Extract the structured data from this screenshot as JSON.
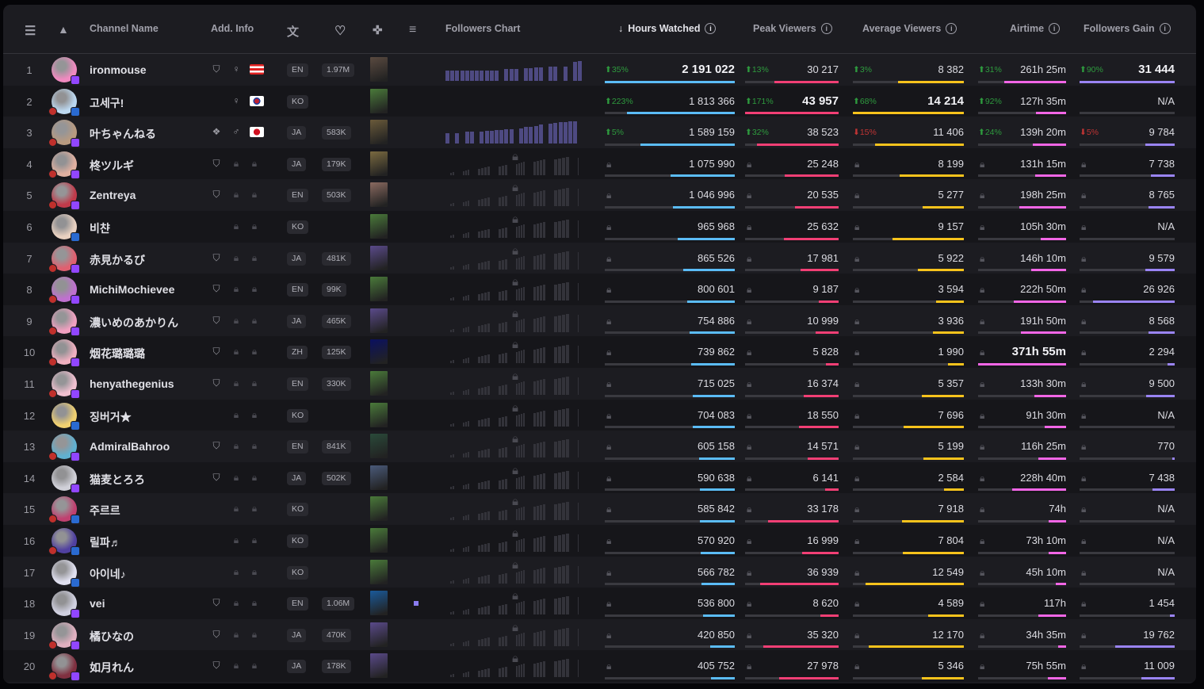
{
  "header": {
    "channel": "Channel Name",
    "add_info": "Add. Info",
    "followers_chart": "Followers Chart",
    "hours": "Hours Watched",
    "peak": "Peak Viewers",
    "avg": "Average Viewers",
    "airtime": "Airtime",
    "gain": "Followers Gain",
    "sort_icon": "arrow-down",
    "info_glyph": "i"
  },
  "colors": {
    "hours": "#5bbcf6",
    "peak": "#f23f75",
    "avg": "#f7c31c",
    "airtime": "#f266e6",
    "gain": "#9a84f4"
  },
  "na": "N/A",
  "rows": [
    {
      "rank": "1",
      "name": "ironmouse",
      "verified": true,
      "gender": "♀",
      "flag": "pr",
      "lang": "EN",
      "followers": "1.97M",
      "game": "#5a4a40",
      "av": "#f08ac0",
      "plat": "twitch",
      "live": false,
      "chart": [
        0.45,
        0.45,
        0.45,
        0.45,
        0.45,
        0.45,
        0.45,
        0.45,
        0.45,
        0.45,
        0.45,
        0,
        0.5,
        0.5,
        0.5,
        0,
        0.55,
        0.55,
        0.57,
        0.57,
        0,
        0.6,
        0.6,
        0,
        0.6,
        0,
        0.8,
        0.85
      ],
      "hw": [
        "35%",
        "up",
        "2 191 022",
        2191022,
        true
      ],
      "pv": [
        "13%",
        "up",
        "30 217",
        30217
      ],
      "avg": [
        "3%",
        "up",
        "8 382",
        8382
      ],
      "air": [
        "31%",
        "up",
        "261h 25m",
        15685
      ],
      "fg": [
        "90%",
        "up",
        "31 444",
        31444,
        true
      ]
    },
    {
      "rank": "2",
      "name": "고세구!",
      "verified": false,
      "gender": "♀",
      "flag": "kr",
      "lang": "KO",
      "followers": "",
      "game": "#4a7a3a",
      "av": "#bcd8f0",
      "plat": "other",
      "live": true,
      "chart": [],
      "hw": [
        "223%",
        "up",
        "1 813 366",
        1813366
      ],
      "pv": [
        "171%",
        "up",
        "43 957",
        43957,
        true
      ],
      "avg": [
        "68%",
        "up",
        "14 214",
        14214,
        true
      ],
      "air": [
        "92%",
        "up",
        "127h 35m",
        7655
      ],
      "fg": [
        "",
        "",
        "N/A",
        0
      ]
    },
    {
      "rank": "3",
      "name": "叶ちゃんねる",
      "verified": false,
      "partner": true,
      "gender": "♂",
      "flag": "jp",
      "lang": "JA",
      "followers": "583K",
      "game": "#6a5a3a",
      "av": "#b89a80",
      "plat": "twitch",
      "live": true,
      "chart": [
        0.45,
        0,
        0.45,
        0,
        0.5,
        0.5,
        0,
        0.5,
        0.55,
        0.55,
        0.57,
        0.57,
        0.6,
        0.6,
        0,
        0.65,
        0.7,
        0.72,
        0.75,
        0.8,
        0,
        0.85,
        0.88,
        0.9,
        0.92,
        0.95,
        0.95
      ],
      "hw": [
        "5%",
        "up",
        "1 589 159",
        1589159
      ],
      "pv": [
        "32%",
        "up",
        "38 523",
        38523
      ],
      "avg": [
        "15%",
        "dn",
        "11 406",
        11406
      ],
      "air": [
        "24%",
        "up",
        "139h 20m",
        8360
      ],
      "fg": [
        "5%",
        "dn",
        "9 784",
        9784
      ]
    },
    {
      "rank": "4",
      "name": "柊ツルギ",
      "verified": true,
      "lang": "JA",
      "followers": "179K",
      "game": "#7a6a40",
      "av": "#e0b0a0",
      "plat": "twitch",
      "live": true,
      "locked": true,
      "hw": [
        "",
        "",
        "1 075 990",
        1075990
      ],
      "pv": [
        "",
        "",
        "25 248",
        25248
      ],
      "avg": [
        "",
        "",
        "8 199",
        8199
      ],
      "air": [
        "",
        "",
        "131h 15m",
        7875
      ],
      "fg": [
        "",
        "",
        "7 738",
        7738
      ]
    },
    {
      "rank": "5",
      "name": "Zentreya",
      "verified": true,
      "lang": "EN",
      "followers": "503K",
      "game": "#8a6a60",
      "av": "#c03a4a",
      "plat": "twitch",
      "live": true,
      "locked": true,
      "hw": [
        "",
        "",
        "1 046 996",
        1046996
      ],
      "pv": [
        "",
        "",
        "20 535",
        20535
      ],
      "avg": [
        "",
        "",
        "5 277",
        5277
      ],
      "air": [
        "",
        "",
        "198h 25m",
        11905
      ],
      "fg": [
        "",
        "",
        "8 765",
        8765
      ]
    },
    {
      "rank": "6",
      "name": "비챤",
      "verified": false,
      "lang": "KO",
      "followers": "",
      "game": "#4a7a3a",
      "av": "#e8d0c0",
      "plat": "other",
      "live": false,
      "locked": true,
      "hw": [
        "",
        "",
        "965 968",
        965968
      ],
      "pv": [
        "",
        "",
        "25 632",
        25632
      ],
      "avg": [
        "",
        "",
        "9 157",
        9157
      ],
      "air": [
        "",
        "",
        "105h 30m",
        6330
      ],
      "fg": [
        "",
        "",
        "N/A",
        0
      ]
    },
    {
      "rank": "7",
      "name": "赤見かるび",
      "verified": true,
      "lang": "JA",
      "followers": "481K",
      "game": "#5a4a8a",
      "av": "#e06070",
      "plat": "twitch",
      "live": true,
      "locked": true,
      "hw": [
        "",
        "",
        "865 526",
        865526
      ],
      "pv": [
        "",
        "",
        "17 981",
        17981
      ],
      "avg": [
        "",
        "",
        "5 922",
        5922
      ],
      "air": [
        "",
        "",
        "146h 10m",
        8770
      ],
      "fg": [
        "",
        "",
        "9 579",
        9579
      ]
    },
    {
      "rank": "8",
      "name": "MichiMochievee",
      "verified": true,
      "lang": "EN",
      "followers": "99K",
      "game": "#4a7a3a",
      "av": "#c070d0",
      "plat": "twitch",
      "live": true,
      "locked": true,
      "hw": [
        "",
        "",
        "800 601",
        800601
      ],
      "pv": [
        "",
        "",
        "9 187",
        9187
      ],
      "avg": [
        "",
        "",
        "3 594",
        3594
      ],
      "air": [
        "",
        "",
        "222h 50m",
        13370
      ],
      "fg": [
        "",
        "",
        "26 926",
        26926
      ]
    },
    {
      "rank": "9",
      "name": "濃いめのあかりん",
      "verified": true,
      "lang": "JA",
      "followers": "465K",
      "game": "#5a4a8a",
      "av": "#f0a0c0",
      "plat": "twitch",
      "live": true,
      "locked": true,
      "hw": [
        "",
        "",
        "754 886",
        754886
      ],
      "pv": [
        "",
        "",
        "10 999",
        10999
      ],
      "avg": [
        "",
        "",
        "3 936",
        3936
      ],
      "air": [
        "",
        "",
        "191h 50m",
        11510
      ],
      "fg": [
        "",
        "",
        "8 568",
        8568
      ]
    },
    {
      "rank": "10",
      "name": "烟花璐璐璐",
      "verified": true,
      "lang": "ZH",
      "followers": "125K",
      "game": "#0a1060",
      "av": "#f0b0c0",
      "plat": "twitch",
      "live": true,
      "locked": true,
      "hw": [
        "",
        "",
        "739 862",
        739862
      ],
      "pv": [
        "",
        "",
        "5 828",
        5828
      ],
      "avg": [
        "",
        "",
        "1 990",
        1990
      ],
      "air": [
        "",
        "",
        "371h 55m",
        22315,
        true
      ],
      "fg": [
        "",
        "",
        "2 294",
        2294
      ]
    },
    {
      "rank": "11",
      "name": "henyathegenius",
      "verified": true,
      "lang": "EN",
      "followers": "330K",
      "game": "#4a7a3a",
      "av": "#f0c0d0",
      "plat": "twitch",
      "live": true,
      "locked": true,
      "hw": [
        "",
        "",
        "715 025",
        715025
      ],
      "pv": [
        "",
        "",
        "16 374",
        16374
      ],
      "avg": [
        "",
        "",
        "5 357",
        5357
      ],
      "air": [
        "",
        "",
        "133h 30m",
        8010
      ],
      "fg": [
        "",
        "",
        "9 500",
        9500
      ]
    },
    {
      "rank": "12",
      "name": "징버거★",
      "verified": false,
      "lang": "KO",
      "followers": "",
      "game": "#4a7a3a",
      "av": "#f0d070",
      "plat": "other",
      "live": false,
      "locked": true,
      "hw": [
        "",
        "",
        "704 083",
        704083
      ],
      "pv": [
        "",
        "",
        "18 550",
        18550
      ],
      "avg": [
        "",
        "",
        "7 696",
        7696
      ],
      "air": [
        "",
        "",
        "91h 30m",
        5490
      ],
      "fg": [
        "",
        "",
        "N/A",
        0
      ]
    },
    {
      "rank": "13",
      "name": "AdmiralBahroo",
      "verified": true,
      "lang": "EN",
      "followers": "841K",
      "game": "#2a4a3a",
      "av": "#60b0d0",
      "plat": "twitch",
      "live": true,
      "locked": true,
      "hw": [
        "",
        "",
        "605 158",
        605158
      ],
      "pv": [
        "",
        "",
        "14 571",
        14571
      ],
      "avg": [
        "",
        "",
        "5 199",
        5199
      ],
      "air": [
        "",
        "",
        "116h 25m",
        6985
      ],
      "fg": [
        "",
        "",
        "770",
        770
      ]
    },
    {
      "rank": "14",
      "name": "猫麦とろろ",
      "verified": true,
      "lang": "JA",
      "followers": "502K",
      "game": "#4a5a7a",
      "av": "#d0d0d8",
      "plat": "twitch",
      "live": false,
      "locked": true,
      "hw": [
        "",
        "",
        "590 638",
        590638
      ],
      "pv": [
        "",
        "",
        "6 141",
        6141
      ],
      "avg": [
        "",
        "",
        "2 584",
        2584
      ],
      "air": [
        "",
        "",
        "228h 40m",
        13720
      ],
      "fg": [
        "",
        "",
        "7 438",
        7438
      ]
    },
    {
      "rank": "15",
      "name": "주르르",
      "verified": false,
      "lang": "KO",
      "followers": "",
      "game": "#4a7a3a",
      "av": "#c04070",
      "plat": "other",
      "live": true,
      "locked": true,
      "hw": [
        "",
        "",
        "585 842",
        585842
      ],
      "pv": [
        "",
        "",
        "33 178",
        33178
      ],
      "avg": [
        "",
        "",
        "7 918",
        7918
      ],
      "air": [
        "",
        "",
        "74h",
        4440
      ],
      "fg": [
        "",
        "",
        "N/A",
        0
      ]
    },
    {
      "rank": "16",
      "name": "릴파♬",
      "verified": false,
      "lang": "KO",
      "followers": "",
      "game": "#4a7a3a",
      "av": "#5040a0",
      "plat": "other",
      "live": true,
      "locked": true,
      "hw": [
        "",
        "",
        "570 920",
        570920
      ],
      "pv": [
        "",
        "",
        "16 999",
        16999
      ],
      "avg": [
        "",
        "",
        "7 804",
        7804
      ],
      "air": [
        "",
        "",
        "73h 10m",
        4390
      ],
      "fg": [
        "",
        "",
        "N/A",
        0
      ]
    },
    {
      "rank": "17",
      "name": "아이네♪",
      "verified": false,
      "lang": "KO",
      "followers": "",
      "game": "#4a7a3a",
      "av": "#e0e0f0",
      "plat": "other",
      "live": false,
      "locked": true,
      "hw": [
        "",
        "",
        "566 782",
        566782
      ],
      "pv": [
        "",
        "",
        "36 939",
        36939
      ],
      "avg": [
        "",
        "",
        "12 549",
        12549
      ],
      "air": [
        "",
        "",
        "45h 10m",
        2710
      ],
      "fg": [
        "",
        "",
        "N/A",
        0
      ]
    },
    {
      "rank": "18",
      "name": "vei",
      "verified": true,
      "lang": "EN",
      "followers": "1.06M",
      "game": "#1a5a9a",
      "av": "#d0d0e0",
      "plat": "twitch",
      "live": false,
      "locked": true,
      "marker": true,
      "hw": [
        "",
        "",
        "536 800",
        536800
      ],
      "pv": [
        "",
        "",
        "8 620",
        8620
      ],
      "avg": [
        "",
        "",
        "4 589",
        4589
      ],
      "air": [
        "",
        "",
        "117h",
        7020
      ],
      "fg": [
        "",
        "",
        "1 454",
        1454
      ]
    },
    {
      "rank": "19",
      "name": "橘ひなの",
      "verified": true,
      "lang": "JA",
      "followers": "470K",
      "game": "#5a4a8a",
      "av": "#e0b0c0",
      "plat": "twitch",
      "live": true,
      "locked": true,
      "hw": [
        "",
        "",
        "420 850",
        420850
      ],
      "pv": [
        "",
        "",
        "35 320",
        35320
      ],
      "avg": [
        "",
        "",
        "12 170",
        12170
      ],
      "air": [
        "",
        "",
        "34h 35m",
        2075
      ],
      "fg": [
        "",
        "",
        "19 762",
        19762
      ]
    },
    {
      "rank": "20",
      "name": "如月れん",
      "verified": true,
      "lang": "JA",
      "followers": "178K",
      "game": "#5a4a8a",
      "av": "#803040",
      "plat": "twitch",
      "live": true,
      "locked": true,
      "hw": [
        "",
        "",
        "405 752",
        405752
      ],
      "pv": [
        "",
        "",
        "27 978",
        27978
      ],
      "avg": [
        "",
        "",
        "5 346",
        5346
      ],
      "air": [
        "",
        "",
        "75h 55m",
        4555
      ],
      "fg": [
        "",
        "",
        "11 009",
        11009
      ]
    }
  ]
}
